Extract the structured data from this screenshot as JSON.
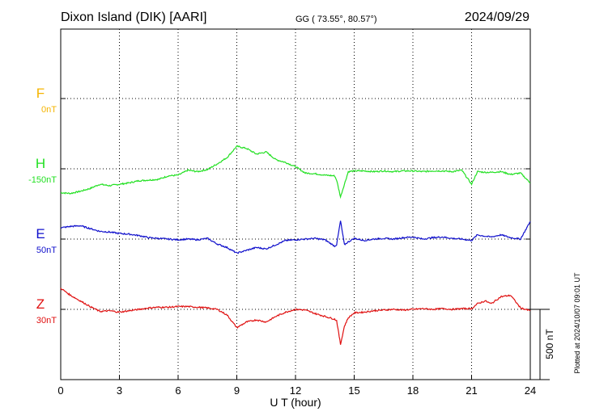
{
  "header": {
    "station": "Dixon Island (DIK)  [AARI]",
    "coords": "GG ( 73.55°,  80.57°)",
    "date": "2024/09/29"
  },
  "footer_note": "Plotted at 2024/10/07 09:01 UT",
  "scale_label": "500 nT",
  "colors": {
    "F": "#f5b400",
    "H": "#22e022",
    "E": "#1010cc",
    "Z": "#e01010"
  },
  "chart_data": {
    "type": "line",
    "xlabel": "U T (hour)",
    "xlim": [
      0,
      24
    ],
    "xticks": [
      "0",
      "3",
      "6",
      "9",
      "12",
      "15",
      "18",
      "21",
      "24"
    ],
    "scale_nT": 500,
    "series": [
      {
        "key": "F",
        "name": "F",
        "baseline_label": "0nT",
        "baseline_nT": 0,
        "x": [],
        "y": []
      },
      {
        "key": "H",
        "name": "H",
        "baseline_label": "-150nT",
        "baseline_nT": -150,
        "x": [
          0,
          0.5,
          1,
          1.5,
          2,
          2.5,
          3,
          3.5,
          4,
          4.5,
          5,
          5.5,
          6,
          6.5,
          7,
          7.5,
          8,
          8.5,
          9,
          9.5,
          10,
          10.5,
          11,
          11.5,
          12,
          12.5,
          13,
          13.5,
          14,
          14.1,
          14.3,
          14.5,
          14.7,
          15,
          15.5,
          16,
          16.5,
          17,
          17.5,
          18,
          18.5,
          19,
          19.5,
          20,
          20.5,
          21,
          21.3,
          21.7,
          22,
          22.5,
          23,
          23.5,
          24
        ],
        "y": [
          -170,
          -175,
          -160,
          -140,
          -110,
          -120,
          -110,
          -100,
          -85,
          -80,
          -75,
          -50,
          -45,
          -10,
          -20,
          -5,
          35,
          80,
          160,
          145,
          105,
          120,
          65,
          45,
          15,
          -30,
          -35,
          -45,
          -50,
          -80,
          -200,
          -110,
          -20,
          -15,
          -15,
          -20,
          -15,
          -20,
          -15,
          -15,
          -20,
          -15,
          -15,
          -20,
          -10,
          -110,
          -20,
          -25,
          -25,
          -20,
          -40,
          -30,
          -100
        ],
        "y_nT": "relative to baseline"
      },
      {
        "key": "E",
        "name": "E",
        "baseline_label": "50nT",
        "baseline_nT": 50,
        "x": [
          0,
          0.5,
          1,
          1.5,
          2,
          2.5,
          3,
          3.5,
          4,
          4.5,
          5,
          5.5,
          6,
          6.5,
          7,
          7.5,
          8,
          8.5,
          9,
          9.5,
          10,
          10.5,
          11,
          11.5,
          12,
          12.5,
          13,
          13.5,
          14,
          14.1,
          14.3,
          14.5,
          14.7,
          15,
          15.5,
          16,
          16.5,
          17,
          17.5,
          18,
          18.5,
          19,
          19.5,
          20,
          20.5,
          21,
          21.3,
          21.7,
          22,
          22.5,
          23,
          23.5,
          24
        ],
        "y": [
          80,
          90,
          95,
          75,
          55,
          50,
          40,
          35,
          25,
          10,
          5,
          0,
          -5,
          0,
          -5,
          5,
          -35,
          -60,
          -100,
          -80,
          -60,
          -70,
          -40,
          -10,
          -5,
          0,
          5,
          -5,
          -50,
          -40,
          130,
          -40,
          -20,
          5,
          -10,
          0,
          5,
          0,
          10,
          15,
          0,
          10,
          15,
          5,
          0,
          -10,
          30,
          20,
          15,
          30,
          10,
          0,
          125
        ],
        "y_nT": "relative to baseline"
      },
      {
        "key": "Z",
        "name": "Z",
        "baseline_label": "30nT",
        "baseline_nT": 30,
        "x": [
          0,
          0.5,
          1,
          1.5,
          2,
          2.5,
          3,
          3.5,
          4,
          4.5,
          5,
          5.5,
          6,
          6.5,
          7,
          7.5,
          8,
          8.5,
          9,
          9.5,
          10,
          10.5,
          11,
          11.5,
          12,
          12.5,
          13,
          13.5,
          14,
          14.1,
          14.3,
          14.5,
          14.7,
          15,
          15.5,
          16,
          16.5,
          17,
          17.5,
          18,
          18.5,
          19,
          19.5,
          20,
          20.5,
          21,
          21.3,
          21.7,
          22,
          22.5,
          23,
          23.5,
          24
        ],
        "y": [
          150,
          100,
          60,
          20,
          -15,
          -10,
          -20,
          -10,
          0,
          10,
          15,
          15,
          20,
          20,
          15,
          10,
          0,
          -40,
          -130,
          -90,
          -75,
          -90,
          -50,
          -20,
          0,
          -5,
          -30,
          -50,
          -70,
          -80,
          -250,
          -120,
          -60,
          -25,
          -20,
          -10,
          -5,
          0,
          -5,
          0,
          5,
          0,
          5,
          0,
          5,
          5,
          40,
          60,
          40,
          90,
          100,
          10,
          -10
        ],
        "y_nT": "relative to baseline"
      }
    ],
    "grid": true
  }
}
